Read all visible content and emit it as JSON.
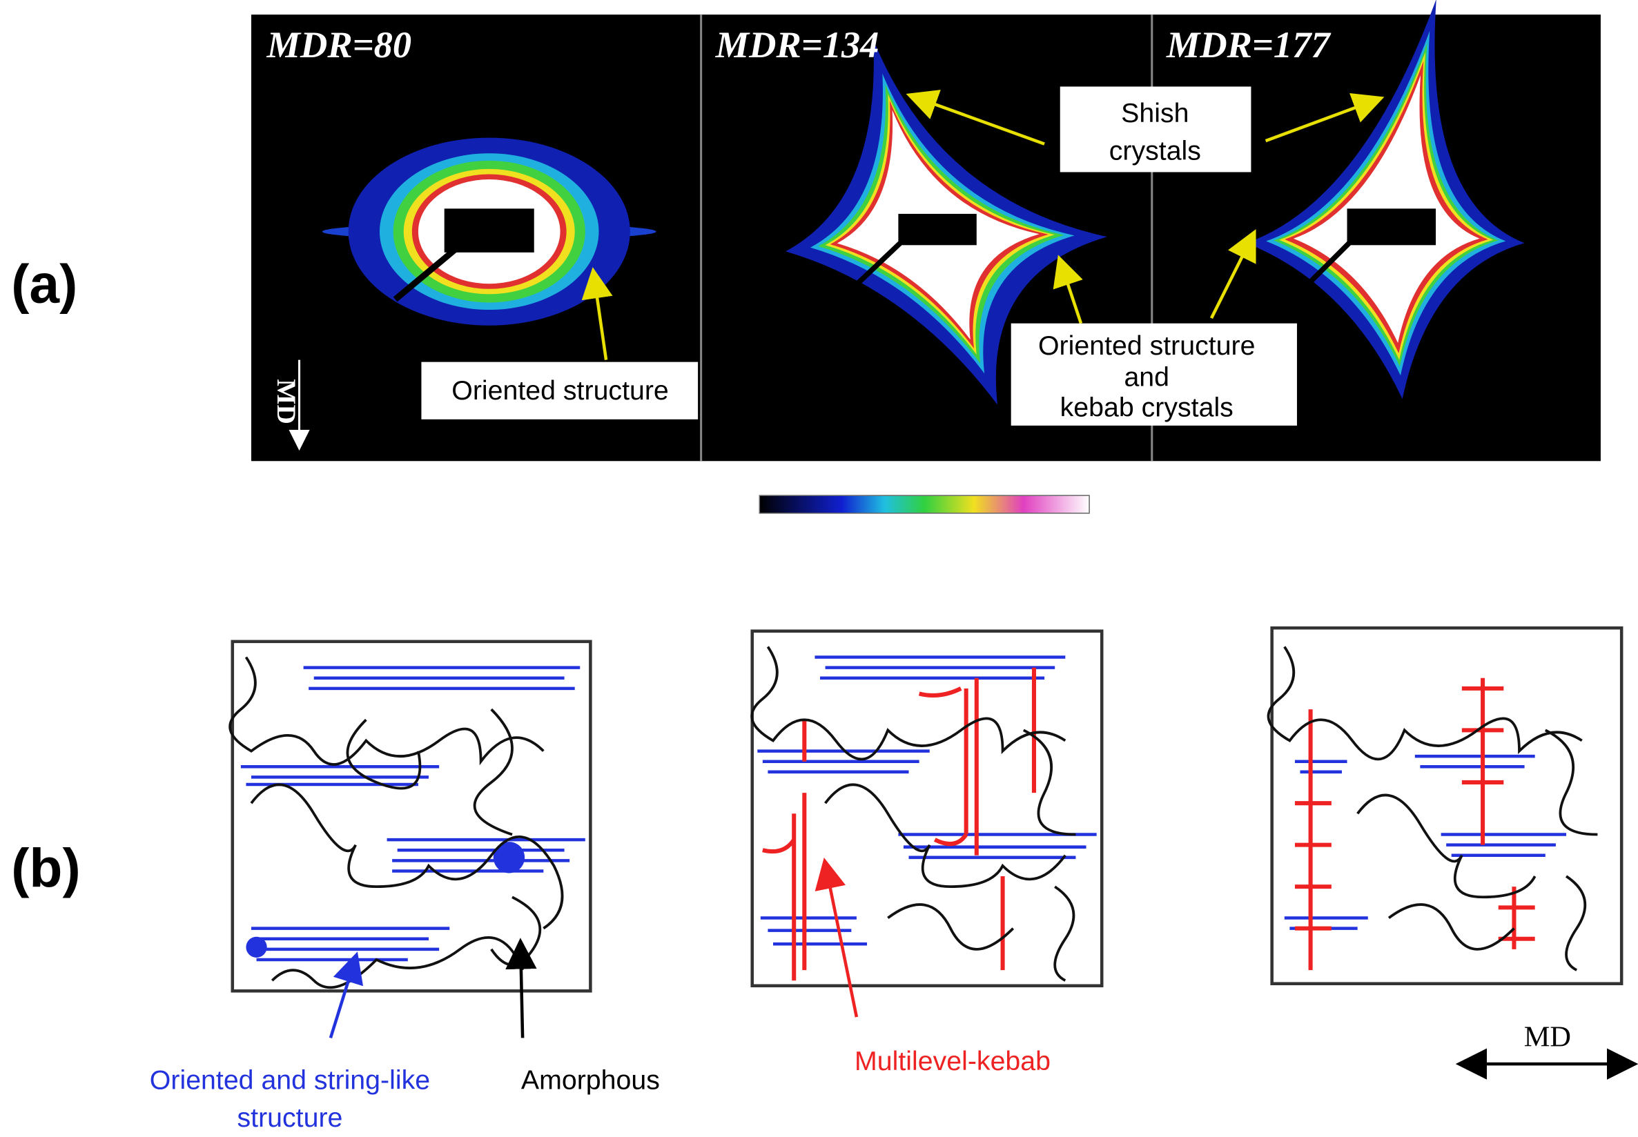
{
  "panel_a": {
    "label": "(a)",
    "images": [
      {
        "title": "MDR=80"
      },
      {
        "title": "MDR=134"
      },
      {
        "title": "MDR=177"
      }
    ],
    "direction_label": "MD",
    "annotations": {
      "oriented": "Oriented structure",
      "shish": [
        "Shish",
        "crystals"
      ],
      "kebab": [
        "Oriented structure",
        "and",
        "kebab crystals"
      ]
    }
  },
  "panel_b": {
    "label": "(b)",
    "legend": {
      "oriented": [
        "Oriented and string-like",
        "structure"
      ],
      "amorphous": "Amorphous",
      "kebab": "Multilevel-kebab"
    },
    "direction_label": "MD"
  }
}
